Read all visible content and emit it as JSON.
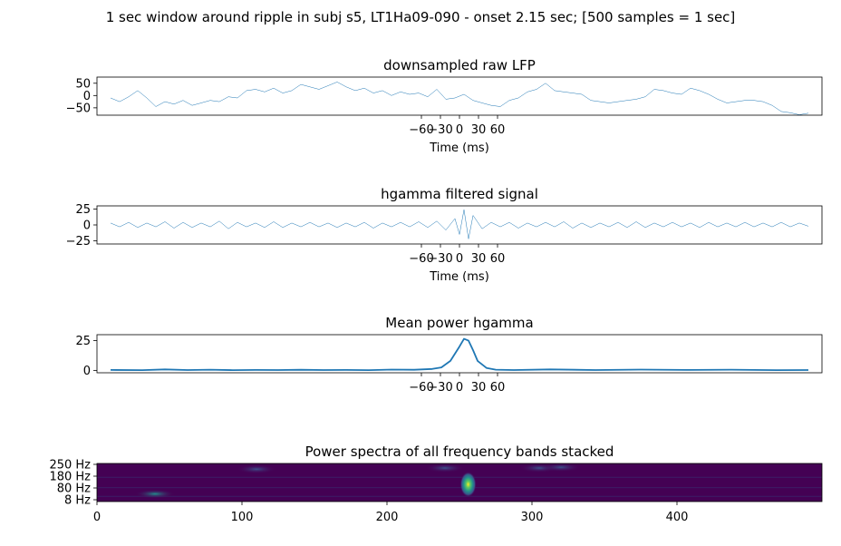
{
  "figure": {
    "suptitle": "1 sec window around ripple in subj s5, LT1Ha09-090 - onset 2.15 sec; [500 samples = 1 sec]"
  },
  "colors": {
    "line": "#1f77b4",
    "frame": "#000000",
    "background": "#ffffff",
    "colormap": [
      "#440154",
      "#3b528b",
      "#21908d",
      "#5dc962",
      "#fde725"
    ]
  },
  "chart_data": [
    {
      "type": "line",
      "title": "downsampled raw LFP",
      "xlabel": "Time (ms)",
      "ylabel": "",
      "xlim": [
        -80,
        80
      ],
      "ylim": [
        -80,
        75
      ],
      "xticks": [
        -60,
        -30,
        0,
        30,
        60
      ],
      "xtick_labels": [
        "−60",
        "−30",
        "0",
        "30",
        "60"
      ],
      "yticks": [
        50,
        0,
        -50
      ],
      "ytick_labels": [
        "50",
        "0",
        "−50"
      ],
      "series": [
        {
          "x": [
            -77,
            -75,
            -73,
            -71,
            -69,
            -67,
            -65,
            -63,
            -61,
            -59,
            -57,
            -55,
            -53,
            -51,
            -49,
            -47,
            -45,
            -43,
            -41,
            -39,
            -37,
            -35,
            -33,
            -31,
            -29,
            -27,
            -25,
            -23,
            -21,
            -19,
            -17,
            -15,
            -13,
            -11,
            -9,
            -7,
            -5,
            -3,
            -1,
            1,
            3,
            5,
            7,
            9,
            11,
            13,
            15,
            17,
            19,
            21,
            23,
            25,
            27,
            29,
            31,
            33,
            35,
            37,
            39,
            41,
            43,
            45,
            47,
            49,
            51,
            53,
            55,
            57,
            59,
            61,
            63,
            65,
            67,
            69,
            71,
            73,
            75,
            77
          ],
          "values": [
            -10,
            -25,
            -5,
            20,
            -10,
            -45,
            -25,
            -35,
            -20,
            -40,
            -30,
            -20,
            -25,
            -5,
            -10,
            20,
            25,
            15,
            30,
            10,
            20,
            45,
            35,
            25,
            40,
            55,
            35,
            20,
            30,
            10,
            20,
            0,
            15,
            5,
            10,
            -5,
            25,
            -15,
            -10,
            5,
            -20,
            -30,
            -40,
            -45,
            -20,
            -10,
            15,
            25,
            50,
            20,
            15,
            10,
            5,
            -20,
            -25,
            -30,
            -25,
            -20,
            -15,
            -5,
            25,
            20,
            10,
            5,
            30,
            20,
            5,
            -15,
            -30,
            -25,
            -20,
            -20,
            -25,
            -40,
            -65,
            -70,
            -78,
            -72
          ]
        }
      ]
    },
    {
      "type": "line",
      "title": "hgamma filtered signal",
      "xlabel": "Time (ms)",
      "ylabel": "",
      "xlim": [
        -80,
        80
      ],
      "ylim": [
        -30,
        30
      ],
      "xticks": [
        -60,
        -30,
        0,
        30,
        60
      ],
      "xtick_labels": [
        "−60",
        "−30",
        "0",
        "30",
        "60"
      ],
      "yticks": [
        25,
        0,
        -25
      ],
      "ytick_labels": [
        "25",
        "0",
        "−25"
      ],
      "series": [
        {
          "x": [
            -77,
            -75,
            -73,
            -71,
            -69,
            -67,
            -65,
            -63,
            -61,
            -59,
            -57,
            -55,
            -53,
            -51,
            -49,
            -47,
            -45,
            -43,
            -41,
            -39,
            -37,
            -35,
            -33,
            -31,
            -29,
            -27,
            -25,
            -23,
            -21,
            -19,
            -17,
            -15,
            -13,
            -11,
            -9,
            -7,
            -5,
            -3,
            -1,
            0,
            1,
            2,
            3,
            5,
            7,
            9,
            11,
            13,
            15,
            17,
            19,
            21,
            23,
            25,
            27,
            29,
            31,
            33,
            35,
            37,
            39,
            41,
            43,
            45,
            47,
            49,
            51,
            53,
            55,
            57,
            59,
            61,
            63,
            65,
            67,
            69,
            71,
            73,
            75,
            77
          ],
          "values": [
            3,
            -3,
            4,
            -4,
            3,
            -3,
            5,
            -5,
            4,
            -4,
            3,
            -3,
            6,
            -6,
            4,
            -3,
            3,
            -4,
            5,
            -4,
            3,
            -3,
            4,
            -3,
            3,
            -4,
            3,
            -3,
            4,
            -5,
            3,
            -3,
            4,
            -3,
            5,
            -4,
            6,
            -8,
            10,
            -15,
            24,
            -22,
            15,
            -6,
            4,
            -3,
            4,
            -5,
            3,
            -3,
            4,
            -3,
            5,
            -5,
            3,
            -4,
            3,
            -3,
            4,
            -4,
            5,
            -4,
            3,
            -3,
            4,
            -3,
            3,
            -4,
            4,
            -3,
            3,
            -3,
            4,
            -3,
            3,
            -3,
            4,
            -3,
            3,
            -2
          ]
        }
      ]
    },
    {
      "type": "line",
      "title": "Mean power hgamma",
      "xlabel": "",
      "ylabel": "",
      "xlim": [
        -80,
        80
      ],
      "ylim": [
        -2,
        30
      ],
      "xticks": [
        -60,
        -30,
        0,
        30,
        60
      ],
      "xtick_labels": [
        "−60",
        "−30",
        "0",
        "30",
        "60"
      ],
      "yticks": [
        25,
        0
      ],
      "ytick_labels": [
        "25",
        "0"
      ],
      "series": [
        {
          "x": [
            -77,
            -70,
            -65,
            -60,
            -55,
            -50,
            -45,
            -40,
            -35,
            -30,
            -25,
            -20,
            -15,
            -10,
            -6,
            -4,
            -2,
            0,
            1,
            2,
            3,
            4,
            6,
            8,
            12,
            20,
            30,
            40,
            50,
            60,
            70,
            77
          ],
          "values": [
            0.4,
            0.2,
            0.8,
            0.3,
            0.6,
            0.2,
            0.4,
            0.3,
            0.5,
            0.3,
            0.4,
            0.2,
            0.7,
            0.5,
            1.2,
            2.5,
            8,
            20,
            26.5,
            25,
            17,
            8,
            2,
            0.6,
            0.3,
            0.8,
            0.3,
            0.7,
            0.4,
            0.6,
            0.2,
            0.3
          ]
        }
      ]
    },
    {
      "type": "heatmap",
      "title": "Power spectra of all frequency bands stacked",
      "xlabel": "",
      "ylabel": "",
      "xlim": [
        0,
        500
      ],
      "xticks": [
        0,
        100,
        200,
        300,
        400
      ],
      "xtick_labels": [
        "0",
        "100",
        "200",
        "300",
        "400"
      ],
      "ytick_labels": [
        "250 Hz",
        "180 Hz",
        "80 Hz",
        "8 Hz"
      ],
      "hotspots": [
        {
          "x": 256,
          "band": 0.55,
          "intensity": 1.0
        },
        {
          "x": 40,
          "band": 0.8,
          "intensity": 0.35
        },
        {
          "x": 305,
          "band": 0.12,
          "intensity": 0.3
        },
        {
          "x": 320,
          "band": 0.1,
          "intensity": 0.25
        },
        {
          "x": 110,
          "band": 0.15,
          "intensity": 0.18
        },
        {
          "x": 240,
          "band": 0.12,
          "intensity": 0.2
        }
      ]
    }
  ]
}
